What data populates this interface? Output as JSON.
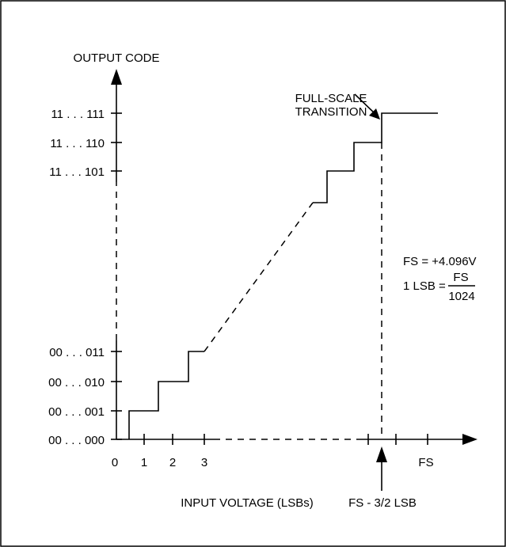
{
  "y_axis": {
    "title": "OUTPUT CODE"
  },
  "x_axis": {
    "title": "INPUT VOLTAGE (LSBs)"
  },
  "y_codes": [
    "00 . . . 000",
    "00 . . . 001",
    "00 . . . 010",
    "00 . . . 011",
    "11 . . . 101",
    "11 . . . 110",
    "11 . . . 111"
  ],
  "x_ticks": [
    "0",
    "1",
    "2",
    "3",
    "FS"
  ],
  "annotations": {
    "full_scale_transition": [
      "FULL-SCALE",
      "TRANSITION"
    ],
    "fs_value": "FS = +4.096V",
    "lsb_prefix": "1 LSB =",
    "lsb_numerator": "FS",
    "lsb_denominator": "1024",
    "fs_minus": "FS - 3/2 LSB"
  }
}
